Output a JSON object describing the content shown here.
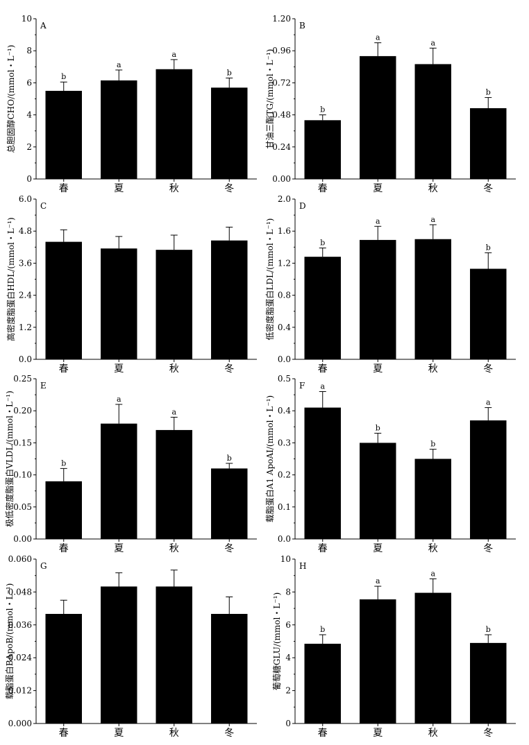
{
  "chart_data": [
    {
      "type": "bar",
      "panel": "A",
      "ylabel": "总胆固醇CHO/(mmol・L⁻¹)",
      "categories": [
        "春",
        "夏",
        "秋",
        "冬"
      ],
      "values": [
        5.5,
        6.15,
        6.85,
        5.7
      ],
      "errors": [
        0.55,
        0.65,
        0.6,
        0.6
      ],
      "significance": [
        "b",
        "a",
        "a",
        "b"
      ],
      "ylim": [
        0,
        10
      ],
      "yticks": [
        "0",
        "2",
        "4",
        "6",
        "8",
        "10"
      ]
    },
    {
      "type": "bar",
      "panel": "B",
      "ylabel": "甘油三酯TG/(mmol・L⁻¹)",
      "categories": [
        "春",
        "夏",
        "秋",
        "冬"
      ],
      "values": [
        0.44,
        0.92,
        0.86,
        0.53
      ],
      "errors": [
        0.04,
        0.1,
        0.12,
        0.08
      ],
      "significance": [
        "b",
        "a",
        "a",
        "b"
      ],
      "ylim": [
        0,
        1.2
      ],
      "yticks": [
        "0.00",
        "0.24",
        "0.48",
        "0.72",
        "0.96",
        "1.20"
      ]
    },
    {
      "type": "bar",
      "panel": "C",
      "ylabel": "高密度脂蛋白HDL/(mmol・L⁻¹)",
      "categories": [
        "春",
        "夏",
        "秋",
        "冬"
      ],
      "values": [
        4.4,
        4.15,
        4.1,
        4.45
      ],
      "errors": [
        0.45,
        0.45,
        0.55,
        0.5
      ],
      "significance": [
        "",
        "",
        "",
        ""
      ],
      "ylim": [
        0,
        6
      ],
      "yticks": [
        "0.0",
        "1.2",
        "2.4",
        "3.6",
        "4.8",
        "6.0"
      ]
    },
    {
      "type": "bar",
      "panel": "D",
      "ylabel": "低密度脂蛋白LDL/(mmol・L⁻¹)",
      "categories": [
        "春",
        "夏",
        "秋",
        "冬"
      ],
      "values": [
        1.28,
        1.49,
        1.5,
        1.13
      ],
      "errors": [
        0.11,
        0.17,
        0.18,
        0.2
      ],
      "significance": [
        "b",
        "a",
        "a",
        "b"
      ],
      "ylim": [
        0,
        2
      ],
      "yticks": [
        "0.0",
        "0.4",
        "0.8",
        "1.2",
        "1.6",
        "2.0"
      ]
    },
    {
      "type": "bar",
      "panel": "E",
      "ylabel": "极低密度脂蛋白VLDL/(mmol・L⁻¹)",
      "categories": [
        "春",
        "夏",
        "秋",
        "冬"
      ],
      "values": [
        0.09,
        0.18,
        0.17,
        0.11
      ],
      "errors": [
        0.02,
        0.03,
        0.02,
        0.008
      ],
      "significance": [
        "b",
        "a",
        "a",
        "b"
      ],
      "ylim": [
        0,
        0.25
      ],
      "yticks": [
        "0.00",
        "0.05",
        "0.10",
        "0.15",
        "0.20",
        "0.25"
      ]
    },
    {
      "type": "bar",
      "panel": "F",
      "ylabel": "载脂蛋白A1 ApoAI/(mmol・L⁻¹)",
      "categories": [
        "春",
        "夏",
        "秋",
        "冬"
      ],
      "values": [
        0.41,
        0.3,
        0.25,
        0.37
      ],
      "errors": [
        0.05,
        0.03,
        0.03,
        0.04
      ],
      "significance": [
        "a",
        "b",
        "b",
        "a"
      ],
      "ylim": [
        0,
        0.5
      ],
      "yticks": [
        "0.0",
        "0.1",
        "0.2",
        "0.3",
        "0.4",
        "0.5"
      ]
    },
    {
      "type": "bar",
      "panel": "G",
      "ylabel": "载脂蛋白BApoB/(mmol・L⁻¹)",
      "categories": [
        "春",
        "夏",
        "秋",
        "冬"
      ],
      "values": [
        0.04,
        0.05,
        0.05,
        0.04
      ],
      "errors": [
        0.005,
        0.005,
        0.006,
        0.0062
      ],
      "significance": [
        "",
        "",
        "",
        ""
      ],
      "ylim": [
        0,
        0.06
      ],
      "yticks": [
        "0.000",
        "0.012",
        "0.024",
        "0.036",
        "0.048",
        "0.060"
      ]
    },
    {
      "type": "bar",
      "panel": "H",
      "ylabel": "葡萄糖GLU/(mmol・L⁻¹)",
      "categories": [
        "春",
        "夏",
        "秋",
        "冬"
      ],
      "values": [
        4.85,
        7.55,
        7.95,
        4.9
      ],
      "errors": [
        0.55,
        0.8,
        0.85,
        0.5
      ],
      "significance": [
        "b",
        "a",
        "a",
        "b"
      ],
      "ylim": [
        0,
        10
      ],
      "yticks": [
        "0",
        "2",
        "4",
        "6",
        "8",
        "10"
      ]
    }
  ]
}
